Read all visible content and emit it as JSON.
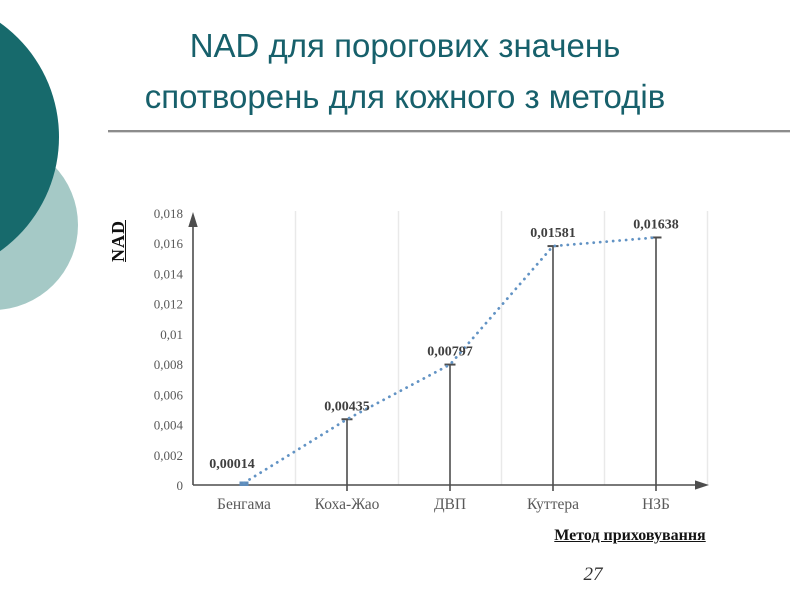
{
  "slide": {
    "title_lines": [
      "NAD для порогових значень",
      "спотворень для кожного з методів"
    ],
    "page_number": "27"
  },
  "colors": {
    "title": "#17606b",
    "circle_dark": "#176a6c",
    "circle_light": "#a5c9c6",
    "dotted_line": "#6293c4",
    "first_point_marker": "#5f8cba",
    "drop_line": "#4d4d4d",
    "axis": "#4d4d4d",
    "tick_text": "#595959",
    "data_label_text": "#3f3f3f",
    "gridline": "#e9e9e9"
  },
  "chart_data": {
    "type": "line",
    "title": "",
    "categories": [
      "Бенгама",
      "Коха-Жао",
      "ДВП",
      "Куттера",
      "НЗБ"
    ],
    "values": [
      0.00014,
      0.00435,
      0.00797,
      0.01581,
      0.01638
    ],
    "data_labels": [
      "0,00014",
      "0,00435",
      "0,00797",
      "0,01581",
      "0,01638"
    ],
    "xlabel": "Метод приховування",
    "ylabel": "NAD",
    "ylim": [
      0,
      0.018
    ],
    "y_ticks": [
      "0",
      "0,002",
      "0,004",
      "0,006",
      "0,008",
      "0,01",
      "0,012",
      "0,014",
      "0,016",
      "0,018"
    ],
    "grid": "vertical-only",
    "legend": "none",
    "line_style": "dotted",
    "markers": "drop-lines-with-caps"
  }
}
